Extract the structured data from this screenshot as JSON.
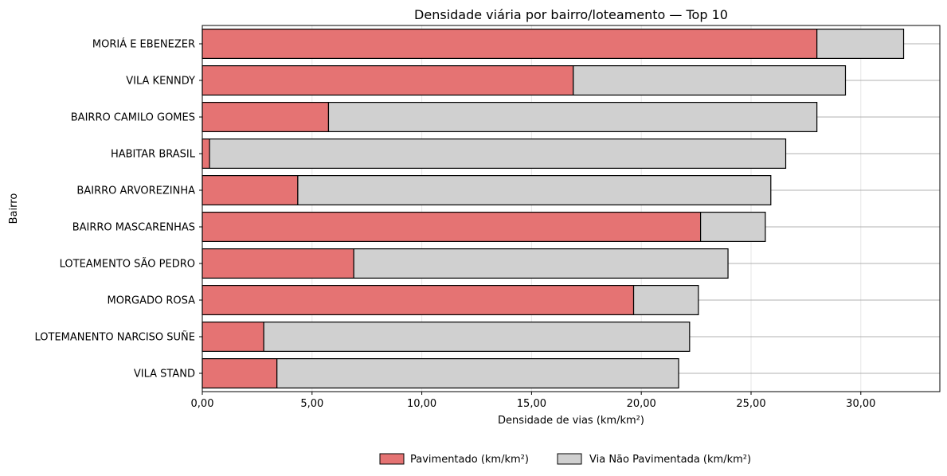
{
  "chart_data": {
    "type": "bar",
    "orientation": "horizontal",
    "stacked": true,
    "title": "Densidade viária por bairro/loteamento — Top 10",
    "xlabel": "Densidade de vias (km/km²)",
    "ylabel": "Bairro",
    "xlim": [
      0,
      33.6
    ],
    "x_ticks": [
      0,
      5,
      10,
      15,
      20,
      25,
      30
    ],
    "x_tick_labels": [
      "0,00",
      "5,00",
      "10,00",
      "15,00",
      "20,00",
      "25,00",
      "30,00"
    ],
    "categories": [
      "MORIÁ E EBENEZER",
      "VILA KENNDY",
      "BAIRRO CAMILO GOMES",
      "HABITAR BRASIL",
      "BAIRRO ARVOREZINHA",
      "BAIRRO MASCARENHAS",
      "LOTEAMENTO SÃO PEDRO",
      "MORGADO ROSA",
      "LOTEMANENTO NARCISO SUÑE",
      "VILA STAND"
    ],
    "series": [
      {
        "name": "Pavimentado (km/km²)",
        "color": "#e57373",
        "values": [
          28.0,
          16.9,
          5.75,
          0.33,
          4.35,
          22.7,
          6.9,
          19.65,
          2.8,
          3.4
        ]
      },
      {
        "name": "Via Não Pavimentada (km/km²)",
        "color": "#d0d0d0",
        "values": [
          3.95,
          12.4,
          22.25,
          26.25,
          21.55,
          2.95,
          17.05,
          2.95,
          19.4,
          18.3
        ]
      }
    ],
    "grid": true,
    "legend_position": "bottom-center"
  }
}
